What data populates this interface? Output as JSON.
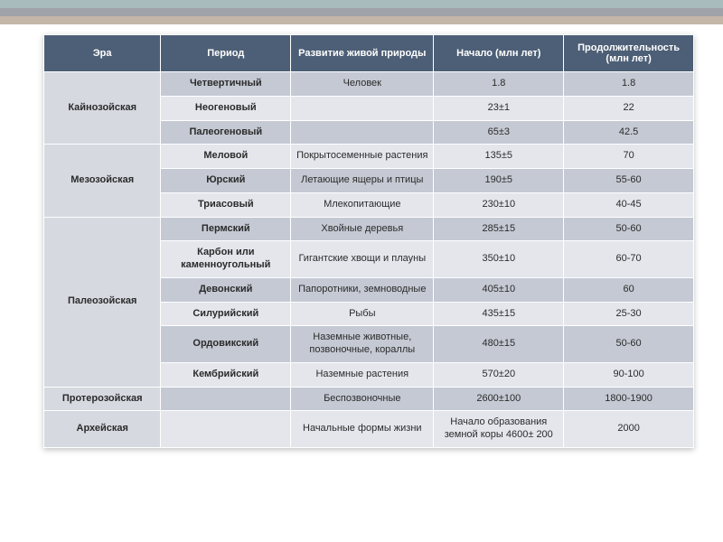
{
  "bands": [
    "#527a7b",
    "#3f4653",
    "#8a6f52"
  ],
  "headers": {
    "era": "Эра",
    "period": "Период",
    "development": "Развитие живой природы",
    "start": "Начало\n(млн лет)",
    "duration": "Продолжительность\n(млн лет)"
  },
  "eras": [
    {
      "name": "Кайнозойская",
      "rows": [
        {
          "period": "Четвертичный",
          "dev": "Человек",
          "start": "1.8",
          "dur": "1.8"
        },
        {
          "period": "Неогеновый",
          "dev": "",
          "start": "23±1",
          "dur": "22"
        },
        {
          "period": "Палеогеновый",
          "dev": "",
          "start": "65±3",
          "dur": "42.5"
        }
      ]
    },
    {
      "name": "Мезозойская",
      "rows": [
        {
          "period": "Меловой",
          "dev": "Покрытосеменные растения",
          "start": "135±5",
          "dur": "70"
        },
        {
          "period": "Юрский",
          "dev": "Летающие ящеры и птицы",
          "start": "190±5",
          "dur": "55-60"
        },
        {
          "period": "Триасовый",
          "dev": "Млекопитающие",
          "start": "230±10",
          "dur": "40-45"
        }
      ]
    },
    {
      "name": "Палеозойская",
      "rows": [
        {
          "period": "Пермский",
          "dev": "Хвойные деревья",
          "start": "285±15",
          "dur": "50-60"
        },
        {
          "period": "Карбон или каменноугольный",
          "dev": "Гигантские хвощи и плауны",
          "start": "350±10",
          "dur": "60-70"
        },
        {
          "period": "Девонский",
          "dev": "Папоротники, земноводные",
          "start": "405±10",
          "dur": "60"
        },
        {
          "period": "Силурийский",
          "dev": "Рыбы",
          "start": "435±15",
          "dur": "25-30"
        },
        {
          "period": "Ордовикский",
          "dev": "Наземные животные, позвоночные, кораллы",
          "start": "480±15",
          "dur": "50-60"
        },
        {
          "period": "Кембрийский",
          "dev": "Наземные растения",
          "start": "570±20",
          "dur": "90-100"
        }
      ]
    },
    {
      "name": "Протерозойская",
      "rows": [
        {
          "period": "",
          "dev": "Беспозвоночные",
          "start": "2600±100",
          "dur": "1800-1900"
        }
      ]
    },
    {
      "name": "Архейская",
      "rows": [
        {
          "period": "",
          "dev": "Начальные формы жизни",
          "start": "Начало образования земной коры 4600± 200",
          "dur": "2000"
        }
      ]
    }
  ],
  "colors": {
    "header_bg": "#4d5f76",
    "rowA": "#c4c9d3",
    "rowB": "#e4e6ec",
    "era_bg": "#d6d9e0"
  }
}
